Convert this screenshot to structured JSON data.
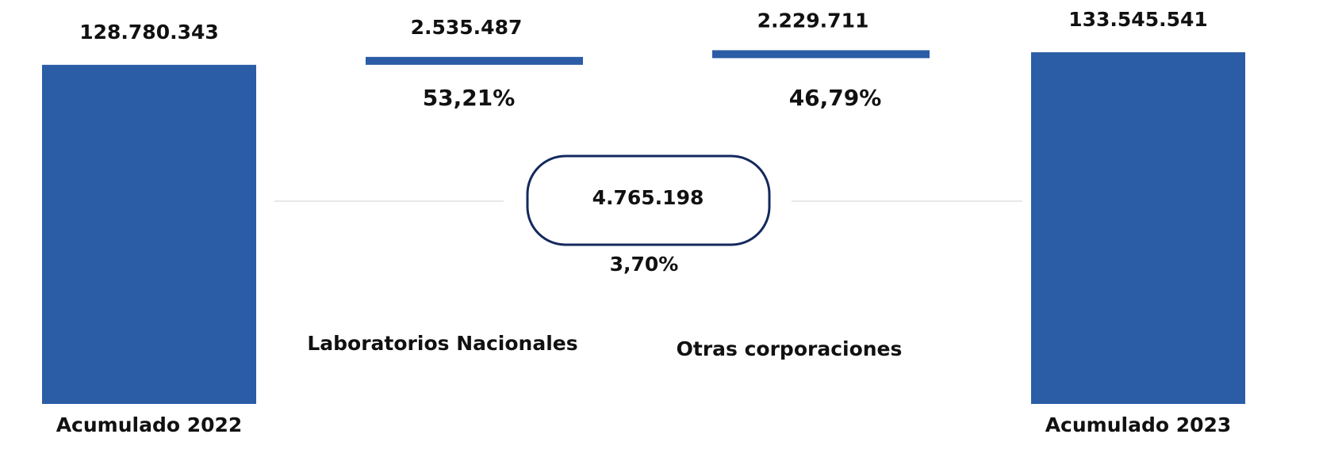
{
  "chart_data": {
    "type": "waterfall",
    "categories": [
      "Acumulado 2022",
      "Laboratorios Nacionales",
      "Otras corporaciones",
      "Acumulado 2023"
    ],
    "values": [
      128780343,
      2535487,
      2229711,
      133545541
    ],
    "value_labels": [
      "128.780.343",
      "2.535.487",
      "2.229.711",
      "133.545.541"
    ],
    "shares": {
      "values": [
        53.21,
        46.79
      ],
      "labels": [
        "53,21%",
        "46,79%"
      ]
    },
    "change": {
      "value": 4765198,
      "label": "4.765.198",
      "pct": 3.7,
      "pct_label": "3,70%"
    },
    "color": "#2b5ca6"
  }
}
